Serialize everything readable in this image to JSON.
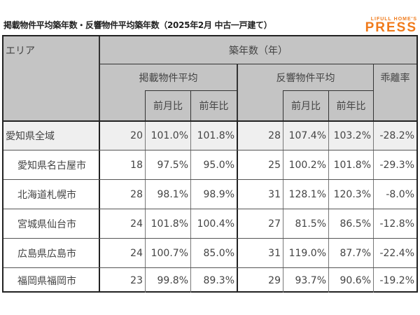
{
  "title": "掲載物件平均築年数・反響物件平均築年数（2025年2月 中古一戸建て）",
  "logo": {
    "line1": "LIFULL HOME'S",
    "line2": "PRESS",
    "color": "#f07a1a"
  },
  "header": {
    "area": "エリア",
    "age": "築年数（年）",
    "listed": "掲載物件平均",
    "inquired": "反響物件平均",
    "divergence": "乖離率",
    "listed_mom": "前月比",
    "listed_yoy": "前年比",
    "inquired_mom": "前月比",
    "inquired_yoy": "前年比"
  },
  "rows": [
    {
      "area": "愛知県全域",
      "listed": "20",
      "listed_mom": "101.0%",
      "listed_yoy": "101.8%",
      "inquired": "28",
      "inquired_mom": "107.4%",
      "inquired_yoy": "103.2%",
      "divergence": "-28.2%"
    },
    {
      "area": "愛知県名古屋市",
      "listed": "18",
      "listed_mom": "97.5%",
      "listed_yoy": "95.0%",
      "inquired": "25",
      "inquired_mom": "100.2%",
      "inquired_yoy": "101.8%",
      "divergence": "-29.3%"
    },
    {
      "area": "北海道札幌市",
      "listed": "28",
      "listed_mom": "98.1%",
      "listed_yoy": "98.9%",
      "inquired": "31",
      "inquired_mom": "128.1%",
      "inquired_yoy": "120.3%",
      "divergence": "-8.0%"
    },
    {
      "area": "宮城県仙台市",
      "listed": "24",
      "listed_mom": "101.8%",
      "listed_yoy": "100.4%",
      "inquired": "27",
      "inquired_mom": "81.5%",
      "inquired_yoy": "86.5%",
      "divergence": "-12.8%"
    },
    {
      "area": "広島県広島市",
      "listed": "24",
      "listed_mom": "100.7%",
      "listed_yoy": "85.0%",
      "inquired": "31",
      "inquired_mom": "119.0%",
      "inquired_yoy": "87.7%",
      "divergence": "-22.4%"
    },
    {
      "area": "福岡県福岡市",
      "listed": "23",
      "listed_mom": "99.8%",
      "listed_yoy": "89.3%",
      "inquired": "29",
      "inquired_mom": "93.7%",
      "inquired_yoy": "90.6%",
      "divergence": "-19.2%"
    }
  ]
}
